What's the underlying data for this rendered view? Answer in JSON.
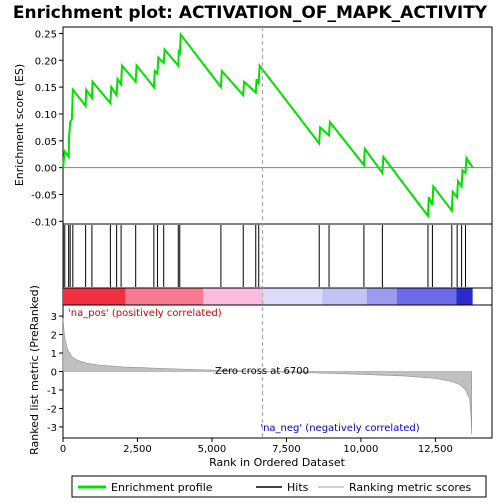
{
  "chart_data": {
    "type": "line",
    "title": "Enrichment plot: ACTIVATION_OF_MAPK_ACTIVITY",
    "es_panel": {
      "ylabel": "Enrichment score (ES)",
      "ylim": [
        -0.105,
        0.262
      ],
      "yticks": [
        -0.1,
        -0.05,
        0.0,
        0.05,
        0.1,
        0.15,
        0.2,
        0.25
      ],
      "ytick_labels": [
        "-0.10",
        "-0.05",
        "0.00",
        "0.05",
        "0.10",
        "0.15",
        "0.20",
        "0.25"
      ],
      "series_name": "Enrichment profile",
      "series_color": "#00e000",
      "points": [
        [
          0,
          0.0
        ],
        [
          60,
          0.03
        ],
        [
          190,
          0.02
        ],
        [
          200,
          0.055
        ],
        [
          240,
          0.085
        ],
        [
          300,
          0.09
        ],
        [
          330,
          0.145
        ],
        [
          760,
          0.115
        ],
        [
          780,
          0.145
        ],
        [
          970,
          0.13
        ],
        [
          990,
          0.16
        ],
        [
          1590,
          0.12
        ],
        [
          1620,
          0.15
        ],
        [
          1800,
          0.135
        ],
        [
          1830,
          0.165
        ],
        [
          1950,
          0.155
        ],
        [
          1980,
          0.19
        ],
        [
          2440,
          0.16
        ],
        [
          2470,
          0.19
        ],
        [
          3050,
          0.15
        ],
        [
          3080,
          0.18
        ],
        [
          3170,
          0.175
        ],
        [
          3200,
          0.205
        ],
        [
          3380,
          0.195
        ],
        [
          3410,
          0.22
        ],
        [
          3870,
          0.19
        ],
        [
          3890,
          0.22
        ],
        [
          3920,
          0.21
        ],
        [
          3950,
          0.248
        ],
        [
          5300,
          0.15
        ],
        [
          5330,
          0.18
        ],
        [
          6050,
          0.135
        ],
        [
          6080,
          0.16
        ],
        [
          6470,
          0.14
        ],
        [
          6500,
          0.165
        ],
        [
          6570,
          0.155
        ],
        [
          6600,
          0.19
        ],
        [
          8600,
          0.045
        ],
        [
          8630,
          0.075
        ],
        [
          8930,
          0.06
        ],
        [
          8960,
          0.085
        ],
        [
          10100,
          0.005
        ],
        [
          10130,
          0.035
        ],
        [
          10720,
          -0.01
        ],
        [
          10750,
          0.02
        ],
        [
          12250,
          -0.09
        ],
        [
          12280,
          -0.055
        ],
        [
          12400,
          -0.07
        ],
        [
          12430,
          -0.035
        ],
        [
          13050,
          -0.08
        ],
        [
          13080,
          -0.045
        ],
        [
          13230,
          -0.055
        ],
        [
          13260,
          -0.025
        ],
        [
          13380,
          -0.035
        ],
        [
          13410,
          -0.005
        ],
        [
          13510,
          -0.01
        ],
        [
          13540,
          0.018
        ],
        [
          13750,
          0.0
        ]
      ]
    },
    "hits": [
      10,
      60,
      190,
      240,
      330,
      760,
      970,
      1590,
      1800,
      1950,
      2440,
      3050,
      3170,
      3380,
      3870,
      3920,
      5300,
      6050,
      6470,
      6570,
      8600,
      8930,
      10100,
      10720,
      12250,
      12400,
      13050,
      13230,
      13380,
      13510
    ],
    "metric_panel": {
      "ylabel": "Ranked list metric (PreRanked)",
      "ylim": [
        -3.6,
        3.6
      ],
      "yticks": [
        -3,
        -2,
        -1,
        0,
        1,
        2,
        3
      ],
      "ytick_labels": [
        "-3",
        "-2",
        "-1",
        "0",
        "1",
        "2",
        "3"
      ],
      "fill_color": "#c0c0c0",
      "points": [
        [
          0,
          2.9
        ],
        [
          50,
          1.9
        ],
        [
          150,
          1.2
        ],
        [
          300,
          0.8
        ],
        [
          500,
          0.6
        ],
        [
          800,
          0.45
        ],
        [
          1200,
          0.35
        ],
        [
          2000,
          0.25
        ],
        [
          3500,
          0.15
        ],
        [
          5000,
          0.08
        ],
        [
          6700,
          0.0
        ],
        [
          8500,
          -0.08
        ],
        [
          10000,
          -0.15
        ],
        [
          11500,
          -0.25
        ],
        [
          12500,
          -0.38
        ],
        [
          13000,
          -0.52
        ],
        [
          13300,
          -0.7
        ],
        [
          13500,
          -0.95
        ],
        [
          13650,
          -1.5
        ],
        [
          13700,
          -2.5
        ],
        [
          13720,
          -3.4
        ]
      ],
      "zero_cross_label": "Zero cross at 6700",
      "zero_cross_rank": 6700,
      "pos_label": "'na_pos' (positively correlated)",
      "neg_label": "'na_neg' (negatively correlated)",
      "pos_label_color": "#cc0000",
      "neg_label_color": "#0000cc"
    },
    "x_axis": {
      "xlabel": "Rank in Ordered Dataset",
      "xlim": [
        0,
        14400
      ],
      "xticks": [
        0,
        2500,
        5000,
        7500,
        10000,
        12500
      ],
      "xtick_labels": [
        "0",
        "2,500",
        "5,000",
        "7,500",
        "10,000",
        "12,500"
      ],
      "list_size": 13750
    },
    "color_bar": [
      {
        "from": 0,
        "to": 2100,
        "color": "#f03040"
      },
      {
        "from": 2100,
        "to": 4700,
        "color": "#f87a90"
      },
      {
        "from": 4700,
        "to": 6700,
        "color": "#fbbce0"
      },
      {
        "from": 6700,
        "to": 8700,
        "color": "#dcdcf8"
      },
      {
        "from": 8700,
        "to": 10200,
        "color": "#c4c4f4"
      },
      {
        "from": 10200,
        "to": 11200,
        "color": "#9c9cee"
      },
      {
        "from": 11200,
        "to": 13200,
        "color": "#6c6ce8"
      },
      {
        "from": 13200,
        "to": 13750,
        "color": "#2a2ad0"
      }
    ],
    "legend": {
      "placement": "bottom",
      "items": [
        {
          "label": "Enrichment profile",
          "kind": "line",
          "color": "#00e000"
        },
        {
          "label": "Hits",
          "kind": "line",
          "color": "#000000"
        },
        {
          "label": "Ranking metric scores",
          "kind": "line",
          "color": "#c0c0c0"
        }
      ]
    }
  }
}
